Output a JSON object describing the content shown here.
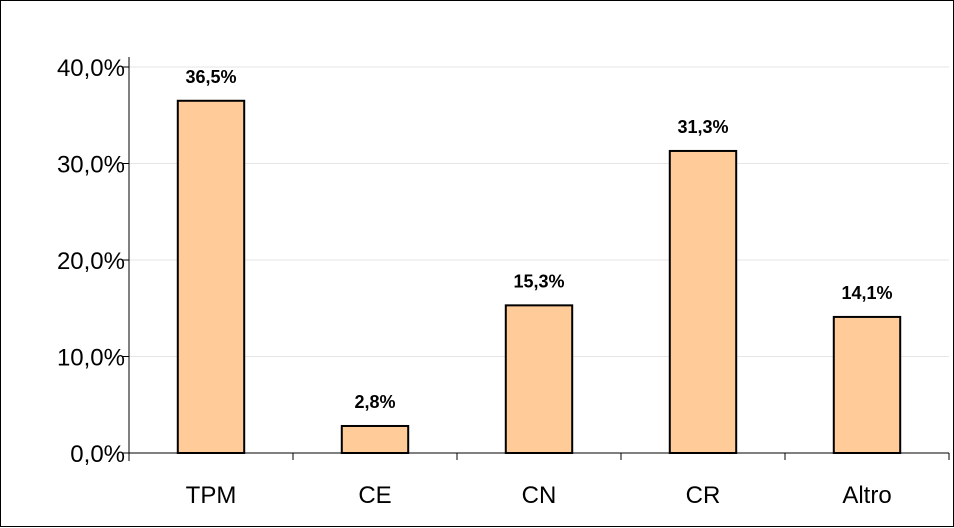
{
  "chart_data": {
    "type": "bar",
    "categories": [
      "TPM",
      "CE",
      "CN",
      "CR",
      "Altro"
    ],
    "values": [
      36.5,
      2.8,
      15.3,
      31.3,
      14.1
    ],
    "data_labels": [
      "36,5%",
      "2,8%",
      "15,3%",
      "31,3%",
      "14,1%"
    ],
    "y_ticks": [
      0,
      10,
      20,
      30,
      40
    ],
    "y_tick_labels": [
      "0,0%",
      "10,0%",
      "20,0%",
      "30,0%",
      "40,0%"
    ],
    "ylim": [
      0,
      40
    ],
    "grid": true,
    "legend": "none",
    "title": "",
    "xlabel": "",
    "ylabel": "",
    "bar_color": "#FFCC99",
    "bar_edge_color": "#000000",
    "gridline_color": "#E6E6E6"
  }
}
